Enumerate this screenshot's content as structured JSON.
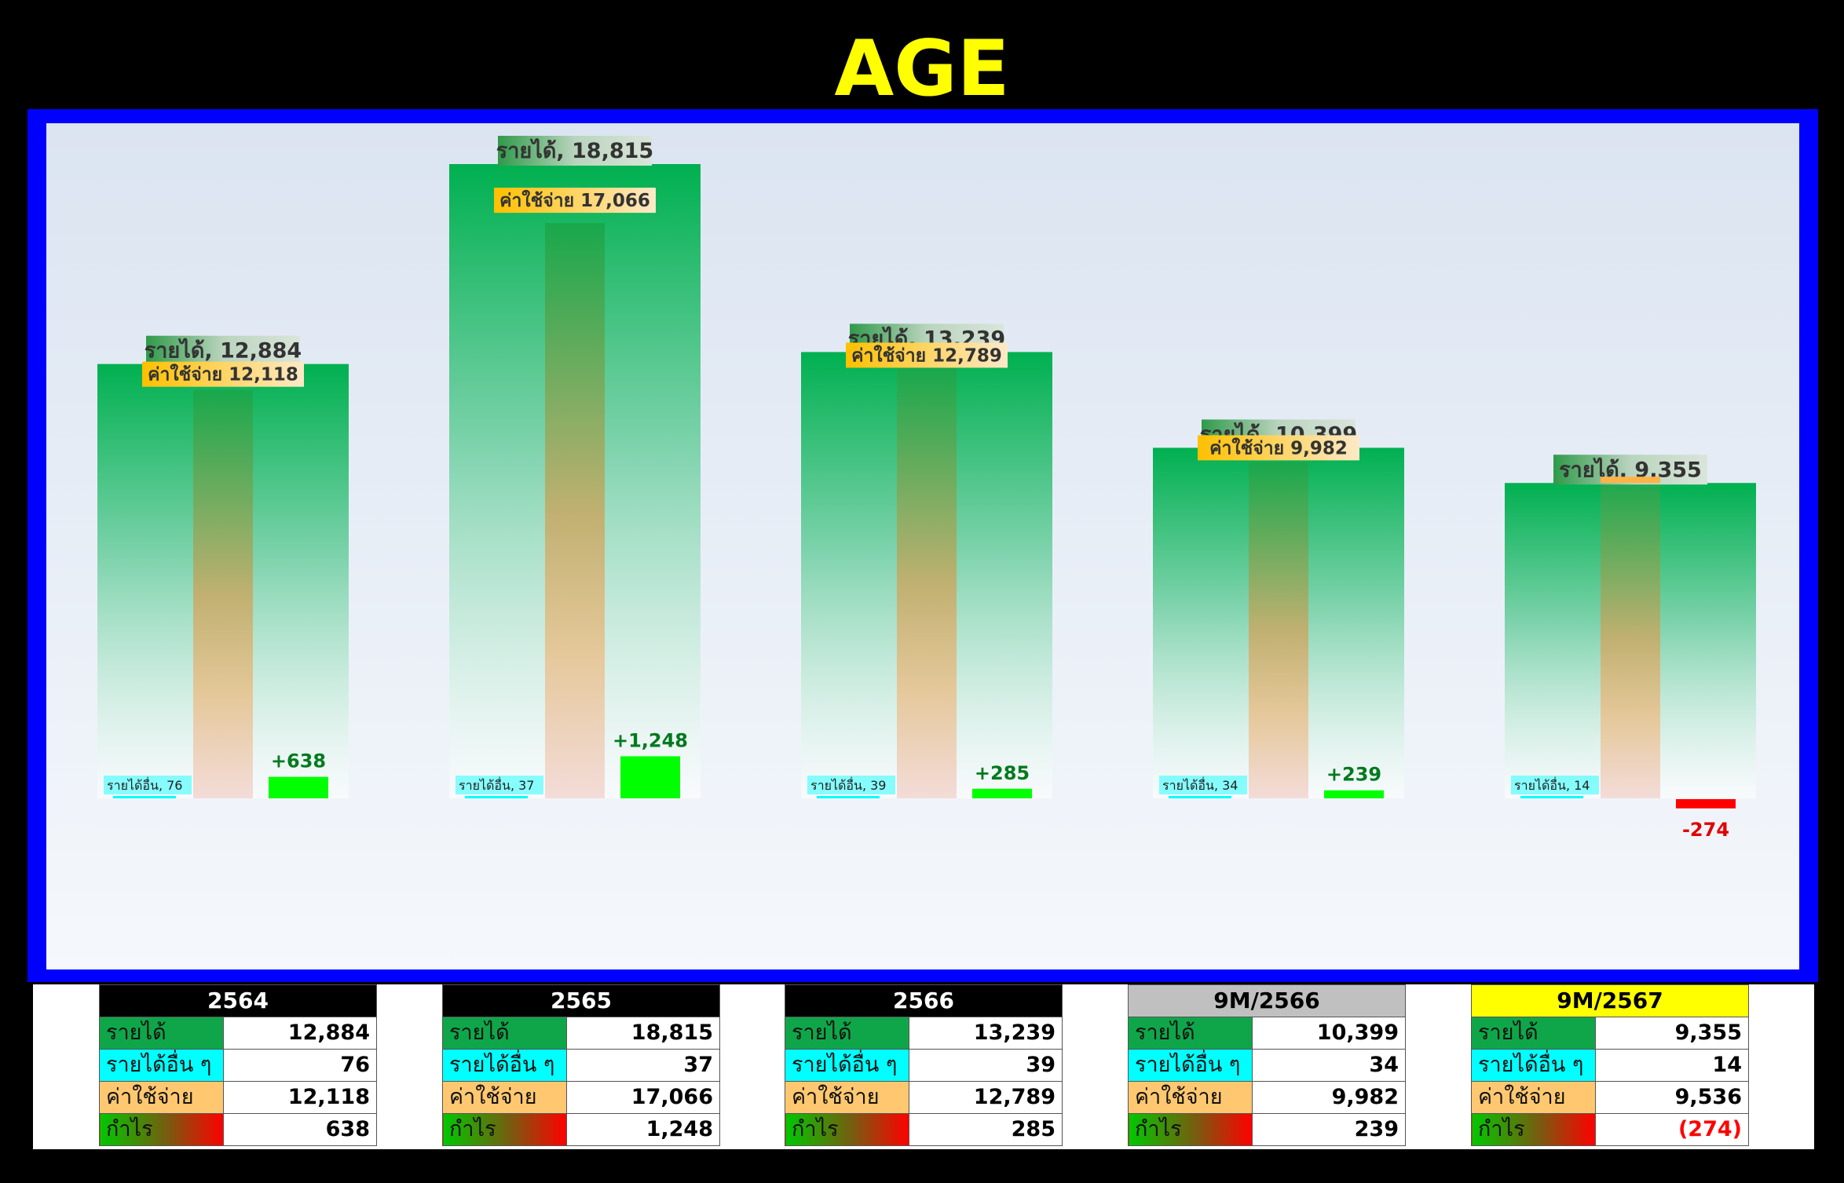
{
  "title": "AGE",
  "labels": {
    "revenue": "รายได้",
    "other_income": "รายได้อื่น ๆ",
    "expense": "ค่าใช้จ่าย",
    "profit": "กำไร"
  },
  "chart_labels": {
    "revenue_prefix": "รายได้,",
    "expense_prefix": "ค่าใช้จ่าย",
    "other_prefix": "รายได้อื่น,"
  },
  "chart_data": {
    "type": "bar",
    "title": "AGE",
    "categories": [
      "2564",
      "2565",
      "2566",
      "9M/2566",
      "9M/2567"
    ],
    "series": [
      {
        "name": "รายได้",
        "values": [
          12884,
          18815,
          13239,
          10399,
          9355
        ]
      },
      {
        "name": "รายได้อื่น ๆ",
        "values": [
          76,
          37,
          39,
          34,
          14
        ]
      },
      {
        "name": "ค่าใช้จ่าย",
        "values": [
          12118,
          17066,
          12789,
          9982,
          9536
        ]
      },
      {
        "name": "กำไร",
        "values": [
          638,
          1248,
          285,
          239,
          -274
        ]
      }
    ],
    "profit_labels": [
      "+638",
      "+1,248",
      "+285",
      "+239",
      "-274"
    ]
  },
  "tables": [
    {
      "period": "2564",
      "header_bg": "#000000",
      "header_color": "#ffffff",
      "revenue": "12,884",
      "other_income": "76",
      "expense": "12,118",
      "profit": "638",
      "profit_negative": false
    },
    {
      "period": "2565",
      "header_bg": "#000000",
      "header_color": "#ffffff",
      "revenue": "18,815",
      "other_income": "37",
      "expense": "17,066",
      "profit": "1,248",
      "profit_negative": false
    },
    {
      "period": "2566",
      "header_bg": "#000000",
      "header_color": "#ffffff",
      "revenue": "13,239",
      "other_income": "39",
      "expense": "12,789",
      "profit": "285",
      "profit_negative": false
    },
    {
      "period": "9M/2566",
      "header_bg": "#c0c0c0",
      "header_color": "#000000",
      "revenue": "10,399",
      "other_income": "34",
      "expense": "9,982",
      "profit": "239",
      "profit_negative": false
    },
    {
      "period": "9M/2567",
      "header_bg": "#ffff00",
      "header_color": "#000000",
      "revenue": "9,355",
      "other_income": "14",
      "expense": "9,536",
      "profit": "(274)",
      "profit_negative": true
    }
  ],
  "colors": {
    "title": "#ffff00",
    "frame": "#0000ff",
    "revenue": "#00b050",
    "other_income": "#00ffff",
    "expense": "#ffc000",
    "profit_positive": "#00ff00",
    "profit_negative": "#ff0000"
  }
}
